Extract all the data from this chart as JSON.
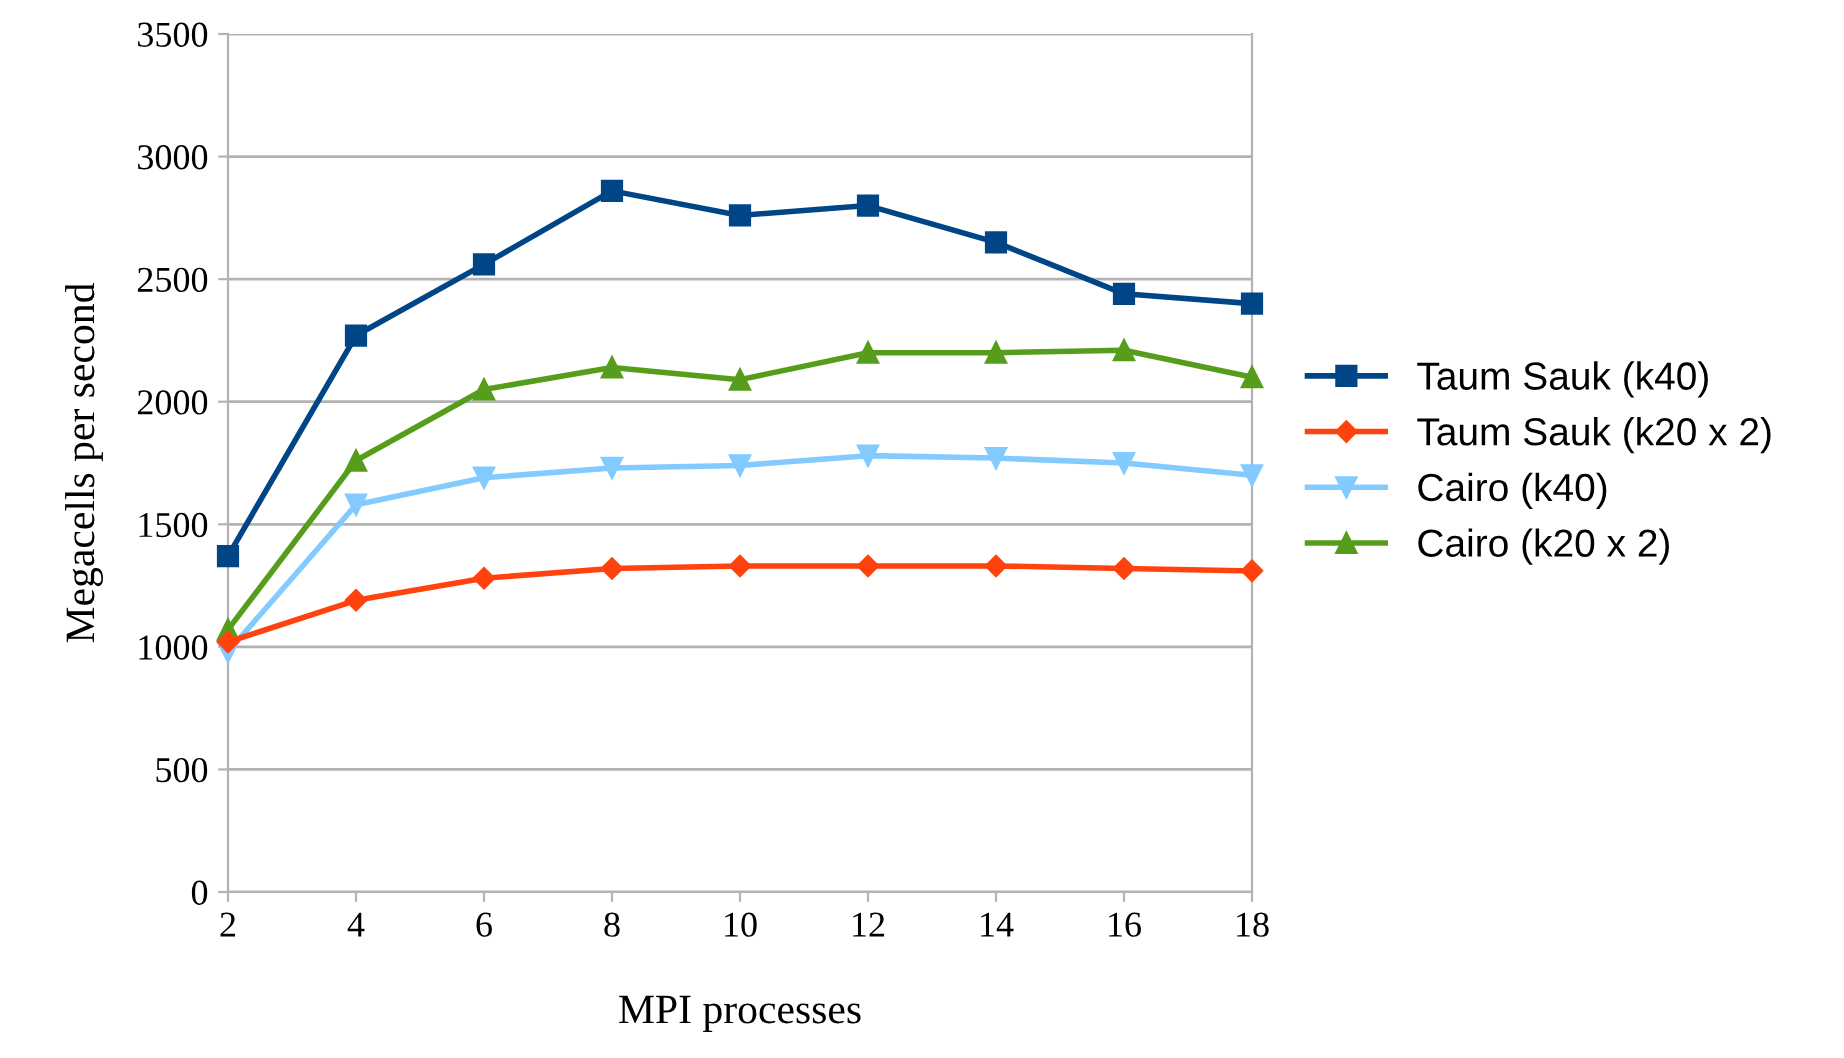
{
  "chart_data": {
    "type": "line",
    "xlabel": "MPI processes",
    "ylabel": "Megacells per second",
    "x": [
      2,
      4,
      6,
      8,
      10,
      12,
      14,
      16,
      18
    ],
    "xlim": [
      2,
      18
    ],
    "xticks": [
      2,
      4,
      6,
      8,
      10,
      12,
      14,
      16,
      18
    ],
    "ylim": [
      0,
      3500
    ],
    "yticks": [
      0,
      500,
      1000,
      1500,
      2000,
      2500,
      3000,
      3500
    ],
    "grid": "y",
    "legend": "right",
    "line_style": "solid",
    "series": [
      {
        "name": "Taum Sauk (k40)",
        "color": "#004586",
        "marker": "square",
        "values": [
          1370,
          2270,
          2560,
          2860,
          2760,
          2800,
          2650,
          2440,
          2400
        ]
      },
      {
        "name": "Taum Sauk (k20 x 2)",
        "color": "#ff420e",
        "marker": "diamond",
        "values": [
          1020,
          1190,
          1280,
          1320,
          1330,
          1330,
          1330,
          1320,
          1310
        ]
      },
      {
        "name": "Cairo (k40)",
        "color": "#83caff",
        "marker": "triangle_down",
        "values": [
          980,
          1580,
          1690,
          1730,
          1740,
          1780,
          1770,
          1750,
          1700
        ]
      },
      {
        "name": "Cairo (k20 x 2)",
        "color": "#579d1c",
        "marker": "triangle",
        "values": [
          1070,
          1760,
          2050,
          2140,
          2090,
          2200,
          2200,
          2210,
          2100
        ]
      }
    ]
  }
}
